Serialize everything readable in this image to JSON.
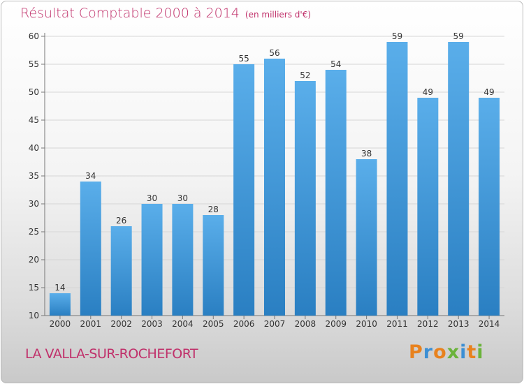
{
  "title": "Résultat Comptable 2000 à 2014",
  "unit_note": "(en milliers d'€)",
  "commune": "LA VALLA-SUR-ROCHEFORT",
  "logo": "Proxiti",
  "colors": {
    "title": "#c0306a",
    "bar_light": "#5aaeea",
    "bar_dark": "#2a7fc2",
    "grid": "#d6d6d6",
    "logo_letters": [
      "#e8821e",
      "#3c8fd4",
      "#e8821e",
      "#6bb33b",
      "#3c8fd4",
      "#e8821e",
      "#6bb33b"
    ]
  },
  "chart_data": {
    "type": "bar",
    "categories": [
      "2000",
      "2001",
      "2002",
      "2003",
      "2004",
      "2005",
      "2006",
      "2007",
      "2008",
      "2009",
      "2010",
      "2011",
      "2012",
      "2013",
      "2014"
    ],
    "values": [
      14,
      34,
      26,
      30,
      30,
      28,
      55,
      56,
      52,
      54,
      38,
      59,
      49,
      59,
      49
    ],
    "yticks": [
      10,
      15,
      20,
      25,
      30,
      35,
      40,
      45,
      50,
      55,
      60
    ],
    "ylim": [
      10,
      60
    ],
    "grid": true,
    "xlabel": "",
    "ylabel": ""
  }
}
